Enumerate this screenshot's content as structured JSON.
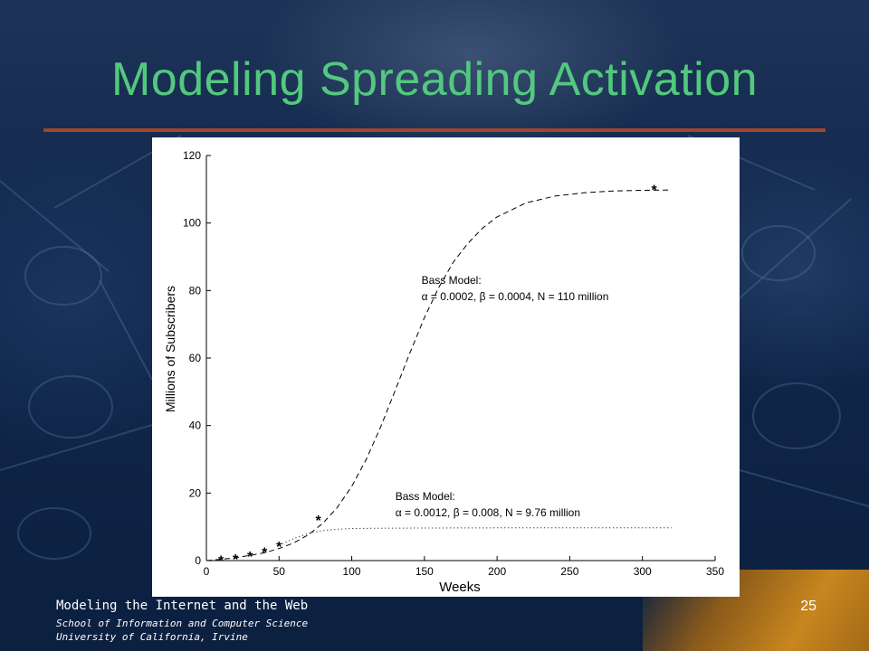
{
  "slide": {
    "title": "Modeling Spreading Activation",
    "footer_title": "Modeling the Internet and the Web",
    "footer_line1": "School of Information and Computer Science",
    "footer_line2": "University of California, Irvine",
    "page_number": "25"
  },
  "colors": {
    "title": "#52c97e",
    "rule": "#a3452a",
    "background": "#0d2243",
    "chart_background": "#ffffff",
    "ink": "#000000"
  },
  "chart_data": {
    "type": "line",
    "title": "",
    "xlabel": "Weeks",
    "ylabel": "Millions of Subscribers",
    "xlim": [
      0,
      350
    ],
    "ylim": [
      0,
      120
    ],
    "xticks": [
      0,
      50,
      100,
      150,
      200,
      250,
      300,
      350
    ],
    "yticks": [
      0,
      20,
      40,
      60,
      80,
      100,
      120
    ],
    "grid": false,
    "series": [
      {
        "style": "dashed",
        "x": [
          0,
          20,
          40,
          50,
          60,
          70,
          80,
          90,
          100,
          110,
          120,
          130,
          140,
          150,
          160,
          170,
          180,
          190,
          200,
          220,
          240,
          260,
          280,
          300,
          320
        ],
        "y": [
          0,
          0.8,
          2.3,
          3.6,
          5.2,
          7.6,
          11,
          15.7,
          22,
          30,
          39.7,
          50.5,
          61.5,
          72,
          81,
          88.5,
          94,
          98.5,
          101.8,
          106,
          108,
          109,
          109.5,
          109.7,
          109.8
        ]
      },
      {
        "style": "dotted",
        "x": [
          50,
          60,
          70,
          80,
          90,
          100,
          120,
          150,
          200,
          250,
          300,
          320
        ],
        "y": [
          4.5,
          6.5,
          8,
          8.9,
          9.3,
          9.5,
          9.6,
          9.65,
          9.7,
          9.7,
          9.7,
          9.7
        ]
      }
    ],
    "observed": {
      "marker": "*",
      "x": [
        10,
        20,
        30,
        40,
        50,
        77,
        308
      ],
      "y": [
        0.2,
        0.6,
        1.3,
        2.5,
        4.3,
        12,
        110
      ]
    },
    "annotations": [
      {
        "heading": "Bass Model:",
        "params": "α = 0.0002, β = 0.0004, N = 110 million",
        "x": 148,
        "y": 82
      },
      {
        "heading": "Bass Model:",
        "params": "α = 0.0012, β = 0.008, N = 9.76 million",
        "x": 130,
        "y": 18
      }
    ]
  }
}
